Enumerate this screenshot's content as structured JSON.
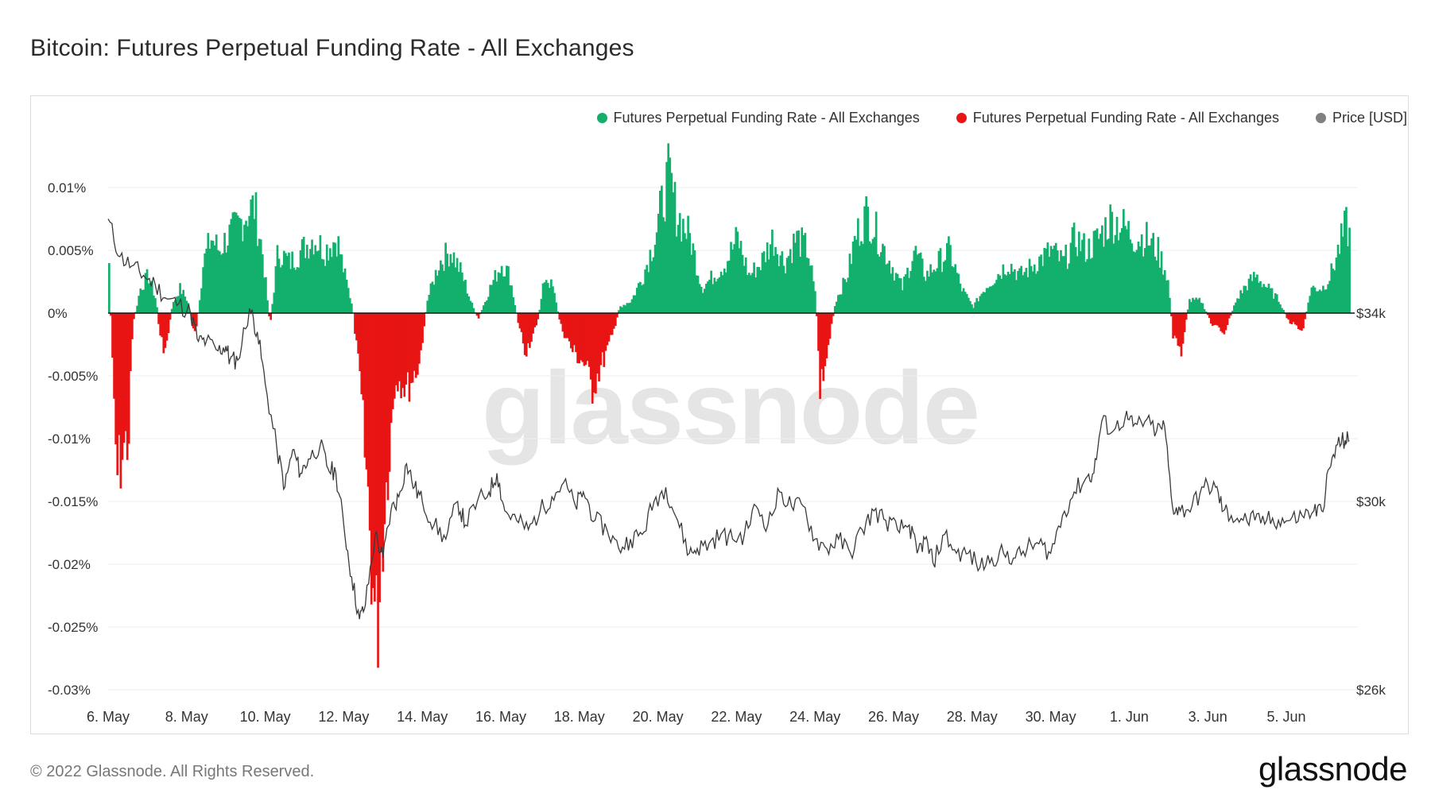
{
  "title": "Bitcoin: Futures Perpetual Funding Rate - All Exchanges",
  "legend": [
    {
      "label": "Futures Perpetual Funding Rate - All Exchanges",
      "color": "#12b06c"
    },
    {
      "label": "Futures Perpetual Funding Rate - All Exchanges",
      "color": "#e81515"
    },
    {
      "label": "Price [USD]",
      "color": "#808080"
    }
  ],
  "watermark": "glassnode",
  "footer": {
    "copyright": "© 2022 Glassnode. All Rights Reserved.",
    "brand": "glassnode"
  },
  "chart_data": {
    "type": "bar+line",
    "title": "Bitcoin: Futures Perpetual Funding Rate - All Exchanges",
    "x_range_days": [
      0,
      31.6
    ],
    "x_ticks": [
      {
        "day": 0,
        "label": "6. May"
      },
      {
        "day": 2,
        "label": "8. May"
      },
      {
        "day": 4,
        "label": "10. May"
      },
      {
        "day": 6,
        "label": "12. May"
      },
      {
        "day": 8,
        "label": "14. May"
      },
      {
        "day": 10,
        "label": "16. May"
      },
      {
        "day": 12,
        "label": "18. May"
      },
      {
        "day": 14,
        "label": "20. May"
      },
      {
        "day": 16,
        "label": "22. May"
      },
      {
        "day": 18,
        "label": "24. May"
      },
      {
        "day": 20,
        "label": "26. May"
      },
      {
        "day": 22,
        "label": "28. May"
      },
      {
        "day": 24,
        "label": "30. May"
      },
      {
        "day": 26,
        "label": "1. Jun"
      },
      {
        "day": 28,
        "label": "3. Jun"
      },
      {
        "day": 30,
        "label": "5. Jun"
      }
    ],
    "y_left": {
      "min": -0.03,
      "max": 0.01,
      "ticks": [
        {
          "v": 0.01,
          "label": "0.01%"
        },
        {
          "v": 0.005,
          "label": "0.005%"
        },
        {
          "v": 0,
          "label": "0%"
        },
        {
          "v": -0.005,
          "label": "-0.005%"
        },
        {
          "v": -0.01,
          "label": "-0.01%"
        },
        {
          "v": -0.015,
          "label": "-0.015%"
        },
        {
          "v": -0.02,
          "label": "-0.02%"
        },
        {
          "v": -0.025,
          "label": "-0.025%"
        },
        {
          "v": -0.03,
          "label": "-0.03%"
        }
      ]
    },
    "y_right": {
      "min": 26000,
      "max": 34000,
      "ticks": [
        {
          "v": 34000,
          "label": "$34k"
        },
        {
          "v": 30000,
          "label": "$30k"
        },
        {
          "v": 26000,
          "label": "$26k"
        }
      ]
    },
    "funding_rate": {
      "name": "Futures Perpetual Funding Rate - All Exchanges",
      "positive_color": "#12b06c",
      "negative_color": "#e81515",
      "points": [
        [
          0.0,
          0.004
        ],
        [
          0.1,
          -0.006
        ],
        [
          0.2,
          -0.013
        ],
        [
          0.35,
          -0.011
        ],
        [
          0.5,
          -0.01
        ],
        [
          0.6,
          -0.001
        ],
        [
          0.8,
          0.002
        ],
        [
          1.0,
          0.003
        ],
        [
          1.2,
          0.001
        ],
        [
          1.3,
          -0.002
        ],
        [
          1.45,
          -0.003
        ],
        [
          1.6,
          0.0005
        ],
        [
          1.8,
          0.002
        ],
        [
          2.0,
          0.001
        ],
        [
          2.2,
          -0.002
        ],
        [
          2.4,
          0.004
        ],
        [
          2.6,
          0.006
        ],
        [
          2.8,
          0.005
        ],
        [
          3.0,
          0.006
        ],
        [
          3.3,
          0.007
        ],
        [
          3.5,
          0.008
        ],
        [
          3.7,
          0.0085
        ],
        [
          3.9,
          0.005
        ],
        [
          4.1,
          -0.001
        ],
        [
          4.3,
          0.005
        ],
        [
          4.6,
          0.004
        ],
        [
          4.9,
          0.005
        ],
        [
          5.2,
          0.006
        ],
        [
          5.5,
          0.005
        ],
        [
          5.8,
          0.006
        ],
        [
          6.0,
          0.003
        ],
        [
          6.2,
          0.0005
        ],
        [
          6.4,
          -0.006
        ],
        [
          6.6,
          -0.015
        ],
        [
          6.8,
          -0.026
        ],
        [
          6.95,
          -0.018
        ],
        [
          7.1,
          -0.012
        ],
        [
          7.3,
          -0.005
        ],
        [
          7.6,
          -0.006
        ],
        [
          7.9,
          -0.004
        ],
        [
          8.1,
          0.001
        ],
        [
          8.4,
          0.004
        ],
        [
          8.7,
          0.005
        ],
        [
          9.0,
          0.003
        ],
        [
          9.2,
          0.001
        ],
        [
          9.4,
          -0.0005
        ],
        [
          9.7,
          0.002
        ],
        [
          10.0,
          0.004
        ],
        [
          10.2,
          0.003
        ],
        [
          10.4,
          -0.0005
        ],
        [
          10.6,
          -0.003
        ],
        [
          10.9,
          -0.001
        ],
        [
          11.1,
          0.003
        ],
        [
          11.3,
          0.002
        ],
        [
          11.5,
          -0.001
        ],
        [
          11.8,
          -0.003
        ],
        [
          12.1,
          -0.004
        ],
        [
          12.3,
          -0.006
        ],
        [
          12.55,
          -0.004
        ],
        [
          12.8,
          -0.002
        ],
        [
          13.0,
          0.0005
        ],
        [
          13.3,
          0.001
        ],
        [
          13.6,
          0.003
        ],
        [
          13.9,
          0.006
        ],
        [
          14.1,
          0.009
        ],
        [
          14.25,
          0.011
        ],
        [
          14.45,
          0.008
        ],
        [
          14.8,
          0.006
        ],
        [
          15.1,
          0.002
        ],
        [
          15.4,
          0.003
        ],
        [
          15.7,
          0.004
        ],
        [
          16.0,
          0.006
        ],
        [
          16.3,
          0.003
        ],
        [
          16.6,
          0.004
        ],
        [
          16.9,
          0.006
        ],
        [
          17.2,
          0.004
        ],
        [
          17.5,
          0.006
        ],
        [
          17.8,
          0.005
        ],
        [
          18.0,
          0.001
        ],
        [
          18.1,
          -0.006
        ],
        [
          18.3,
          -0.003
        ],
        [
          18.5,
          0.001
        ],
        [
          18.8,
          0.003
        ],
        [
          19.0,
          0.006
        ],
        [
          19.3,
          0.008
        ],
        [
          19.6,
          0.006
        ],
        [
          19.9,
          0.004
        ],
        [
          20.2,
          0.002
        ],
        [
          20.5,
          0.005
        ],
        [
          20.8,
          0.003
        ],
        [
          21.1,
          0.004
        ],
        [
          21.4,
          0.005
        ],
        [
          21.7,
          0.002
        ],
        [
          22.0,
          0.0005
        ],
        [
          22.3,
          0.002
        ],
        [
          22.6,
          0.003
        ],
        [
          22.9,
          0.004
        ],
        [
          23.2,
          0.003
        ],
        [
          23.6,
          0.004
        ],
        [
          24.0,
          0.005
        ],
        [
          24.3,
          0.004
        ],
        [
          24.6,
          0.006
        ],
        [
          24.9,
          0.005
        ],
        [
          25.2,
          0.006
        ],
        [
          25.5,
          0.0075
        ],
        [
          25.8,
          0.007
        ],
        [
          26.1,
          0.006
        ],
        [
          26.4,
          0.006
        ],
        [
          26.7,
          0.005
        ],
        [
          26.95,
          0.003
        ],
        [
          27.1,
          -0.002
        ],
        [
          27.3,
          -0.003
        ],
        [
          27.5,
          0.001
        ],
        [
          27.8,
          0.001
        ],
        [
          28.1,
          -0.001
        ],
        [
          28.4,
          -0.0015
        ],
        [
          28.7,
          0.001
        ],
        [
          28.9,
          0.002
        ],
        [
          29.2,
          0.003
        ],
        [
          29.5,
          0.002
        ],
        [
          29.8,
          0.001
        ],
        [
          30.0,
          -0.0005
        ],
        [
          30.2,
          -0.001
        ],
        [
          30.4,
          -0.0015
        ],
        [
          30.6,
          0.002
        ],
        [
          30.9,
          0.002
        ],
        [
          31.1,
          0.003
        ],
        [
          31.3,
          0.005
        ],
        [
          31.5,
          0.007
        ],
        [
          31.6,
          0.006
        ]
      ]
    },
    "price": {
      "name": "Price [USD]",
      "color": "#808080",
      "points": [
        [
          0.0,
          36000
        ],
        [
          0.3,
          35200
        ],
        [
          0.6,
          35000
        ],
        [
          0.9,
          34800
        ],
        [
          1.2,
          34600
        ],
        [
          1.5,
          34300
        ],
        [
          1.8,
          34200
        ],
        [
          2.1,
          34000
        ],
        [
          2.3,
          33400
        ],
        [
          2.5,
          33400
        ],
        [
          2.8,
          33200
        ],
        [
          3.0,
          33300
        ],
        [
          3.1,
          33000
        ],
        [
          3.3,
          33000
        ],
        [
          3.6,
          34100
        ],
        [
          3.8,
          33600
        ],
        [
          4.0,
          32500
        ],
        [
          4.3,
          31100
        ],
        [
          4.5,
          30300
        ],
        [
          4.7,
          31100
        ],
        [
          4.9,
          30600
        ],
        [
          5.1,
          30900
        ],
        [
          5.4,
          31200
        ],
        [
          5.6,
          30700
        ],
        [
          5.8,
          30600
        ],
        [
          6.0,
          29500
        ],
        [
          6.2,
          28400
        ],
        [
          6.4,
          27500
        ],
        [
          6.55,
          27800
        ],
        [
          6.8,
          29300
        ],
        [
          7.0,
          28800
        ],
        [
          7.2,
          29800
        ],
        [
          7.4,
          30100
        ],
        [
          7.6,
          30800
        ],
        [
          7.8,
          30300
        ],
        [
          8.0,
          30000
        ],
        [
          8.3,
          29500
        ],
        [
          8.6,
          29200
        ],
        [
          8.9,
          30000
        ],
        [
          9.1,
          29500
        ],
        [
          9.4,
          30000
        ],
        [
          9.7,
          30200
        ],
        [
          9.9,
          30600
        ],
        [
          10.1,
          29800
        ],
        [
          10.4,
          29600
        ],
        [
          10.7,
          29400
        ],
        [
          11.0,
          29800
        ],
        [
          11.3,
          30100
        ],
        [
          11.6,
          30400
        ],
        [
          11.9,
          29900
        ],
        [
          12.1,
          30200
        ],
        [
          12.4,
          29600
        ],
        [
          12.7,
          29400
        ],
        [
          13.0,
          29000
        ],
        [
          13.3,
          29200
        ],
        [
          13.6,
          29300
        ],
        [
          13.9,
          30000
        ],
        [
          14.2,
          30300
        ],
        [
          14.5,
          29600
        ],
        [
          14.8,
          28900
        ],
        [
          15.0,
          29000
        ],
        [
          15.3,
          29100
        ],
        [
          15.6,
          29300
        ],
        [
          15.9,
          29200
        ],
        [
          16.2,
          29300
        ],
        [
          16.5,
          29900
        ],
        [
          16.8,
          29500
        ],
        [
          17.1,
          30200
        ],
        [
          17.4,
          29900
        ],
        [
          17.7,
          29900
        ],
        [
          18.0,
          29200
        ],
        [
          18.3,
          29000
        ],
        [
          18.6,
          29200
        ],
        [
          18.9,
          28900
        ],
        [
          19.2,
          29400
        ],
        [
          19.5,
          29800
        ],
        [
          19.8,
          29600
        ],
        [
          20.1,
          29400
        ],
        [
          20.4,
          29500
        ],
        [
          20.6,
          28900
        ],
        [
          20.8,
          29200
        ],
        [
          21.0,
          28700
        ],
        [
          21.3,
          29300
        ],
        [
          21.6,
          28900
        ],
        [
          21.9,
          28900
        ],
        [
          22.2,
          28600
        ],
        [
          22.5,
          28800
        ],
        [
          22.8,
          28900
        ],
        [
          23.1,
          28800
        ],
        [
          23.4,
          29000
        ],
        [
          23.7,
          29100
        ],
        [
          24.0,
          28900
        ],
        [
          24.3,
          29700
        ],
        [
          24.6,
          30200
        ],
        [
          24.9,
          30500
        ],
        [
          25.1,
          30600
        ],
        [
          25.3,
          31700
        ],
        [
          25.6,
          31500
        ],
        [
          25.9,
          31800
        ],
        [
          26.1,
          31600
        ],
        [
          26.4,
          31700
        ],
        [
          26.7,
          31500
        ],
        [
          26.9,
          31600
        ],
        [
          27.1,
          29900
        ],
        [
          27.3,
          29800
        ],
        [
          27.6,
          29900
        ],
        [
          27.9,
          30300
        ],
        [
          28.2,
          30300
        ],
        [
          28.4,
          29800
        ],
        [
          28.6,
          29700
        ],
        [
          28.9,
          29600
        ],
        [
          29.2,
          29600
        ],
        [
          29.5,
          29600
        ],
        [
          29.8,
          29600
        ],
        [
          30.1,
          29600
        ],
        [
          30.4,
          29700
        ],
        [
          30.7,
          29800
        ],
        [
          30.9,
          29800
        ],
        [
          31.1,
          30700
        ],
        [
          31.3,
          31200
        ],
        [
          31.5,
          31300
        ],
        [
          31.6,
          31300
        ]
      ]
    }
  }
}
